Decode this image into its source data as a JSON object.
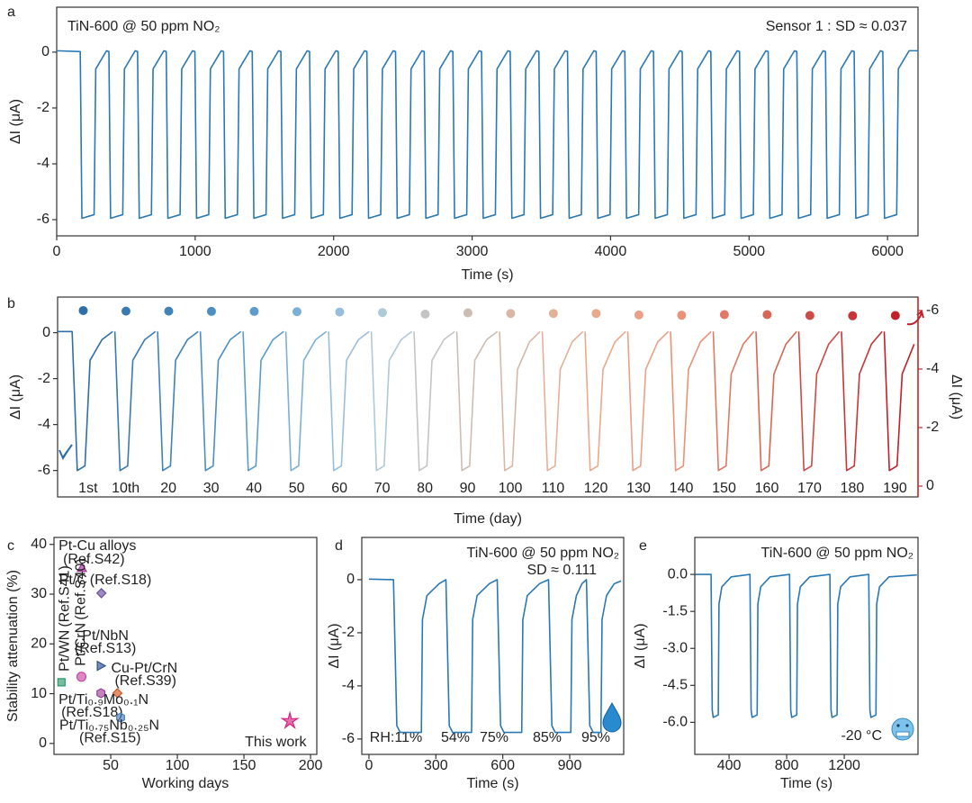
{
  "chart_data": [
    {
      "type": "line",
      "panel_label": "a",
      "title": "TiN-600 @ 50 ppm NO₂",
      "annotation": "Sensor 1 : SD ≈ 0.037",
      "xlabel": "Time (s)",
      "ylabel": "ΔI (μA)",
      "color": "#2a78b4",
      "xlim": [
        0,
        6220
      ],
      "ylim": [
        -6.58,
        1.61
      ],
      "xticks": [
        0,
        1000,
        2000,
        3000,
        4000,
        5000,
        6000
      ],
      "yticks": [
        0,
        -2,
        -4,
        -6
      ],
      "x": [
        0,
        170,
        182,
        270,
        282,
        360,
        377,
        389,
        477,
        489,
        567,
        584,
        596,
        684,
        696,
        774,
        791,
        803,
        891,
        903,
        981,
        998,
        1010,
        1098,
        1110,
        1188,
        1205,
        1217,
        1305,
        1317,
        1395,
        1412,
        1424,
        1512,
        1524,
        1602,
        1619,
        1631,
        1719,
        1731,
        1809,
        1826,
        1838,
        1926,
        1938,
        2016,
        2033,
        2045,
        2133,
        2145,
        2223,
        2240,
        2252,
        2340,
        2352,
        2430,
        2447,
        2459,
        2547,
        2559,
        2637,
        2654,
        2666,
        2754,
        2766,
        2844,
        2861,
        2873,
        2961,
        2973,
        3051,
        3068,
        3080,
        3168,
        3180,
        3258,
        3275,
        3287,
        3375,
        3387,
        3465,
        3482,
        3494,
        3582,
        3594,
        3672,
        3689,
        3701,
        3789,
        3801,
        3879,
        3896,
        3908,
        3996,
        4008,
        4086,
        4103,
        4115,
        4203,
        4215,
        4293,
        4310,
        4322,
        4410,
        4422,
        4500,
        4517,
        4529,
        4617,
        4629,
        4707,
        4724,
        4736,
        4824,
        4836,
        4914,
        4931,
        4943,
        5031,
        5043,
        5121,
        5138,
        5150,
        5238,
        5250,
        5328,
        5345,
        5357,
        5445,
        5457,
        5535,
        5552,
        5564,
        5652,
        5664,
        5742,
        5759,
        5771,
        5859,
        5871,
        5949,
        5966,
        5978,
        6066,
        6078,
        6156,
        6220
      ],
      "values": [
        0.05,
        0.02,
        -5.95,
        -5.82,
        -0.6,
        0.05,
        0.02,
        -5.95,
        -5.82,
        -0.6,
        0.05,
        0.02,
        -5.95,
        -5.82,
        -0.6,
        0.05,
        0.02,
        -5.95,
        -5.82,
        -0.6,
        0.05,
        0.02,
        -5.95,
        -5.82,
        -0.6,
        0.05,
        0.02,
        -5.95,
        -5.82,
        -0.6,
        0.05,
        0.02,
        -5.95,
        -5.82,
        -0.6,
        0.05,
        0.02,
        -5.95,
        -5.82,
        -0.6,
        0.05,
        0.02,
        -5.95,
        -5.82,
        -0.6,
        0.05,
        0.02,
        -5.95,
        -5.82,
        -0.6,
        0.05,
        0.02,
        -5.95,
        -5.82,
        -0.6,
        0.05,
        0.02,
        -5.95,
        -5.82,
        -0.6,
        0.05,
        0.02,
        -5.95,
        -5.82,
        -0.6,
        0.05,
        0.02,
        -5.95,
        -5.82,
        -0.6,
        0.05,
        0.02,
        -5.95,
        -5.82,
        -0.6,
        0.05,
        0.02,
        -5.95,
        -5.82,
        -0.6,
        0.05,
        0.02,
        -5.95,
        -5.82,
        -0.6,
        0.05,
        0.02,
        -5.95,
        -5.82,
        -0.6,
        0.05,
        0.02,
        -5.95,
        -5.82,
        -0.6,
        0.05,
        0.02,
        -5.95,
        -5.82,
        -0.6,
        0.05,
        0.02,
        -5.95,
        -5.82,
        -0.6,
        0.05,
        0.02,
        -5.95,
        -5.82,
        -0.6,
        0.05,
        0.02,
        -5.95,
        -5.82,
        -0.6,
        0.05,
        0.02,
        -5.95,
        -5.82,
        -0.6,
        0.05,
        0.02,
        -5.95,
        -5.82,
        -0.6,
        0.05,
        0.02,
        -5.95,
        -5.82,
        -0.6,
        0.05,
        0.02,
        -5.95,
        -5.82,
        -0.6,
        0.05,
        0.02,
        -5.95,
        -5.82,
        -0.6,
        0.05,
        0.02,
        -5.95,
        -5.82,
        -0.6,
        0.05,
        0.05
      ]
    },
    {
      "type": "line",
      "panel_label": "b",
      "xlabel": "Time (day)",
      "ylabel": "ΔI (μA)",
      "y2label": "ΔI (μA)",
      "y2color": "#c62828",
      "xlim": [
        0,
        20.13
      ],
      "ylim": [
        -7.15,
        1.55
      ],
      "yticks": [
        0,
        -2,
        -4,
        -6
      ],
      "y2lim": [
        0.37,
        -6.46
      ],
      "y2ticks": [
        0,
        -2,
        -4,
        -6
      ],
      "series": [
        {
          "name": "1st",
          "color": "#2f6fa7",
          "x": [
            0,
            0.34,
            0.46,
            0.64,
            0.76,
            1.04,
            1.29
          ],
          "values": [
            0.05,
            0.05,
            -6.0,
            -5.8,
            -1.2,
            -0.3,
            0.05
          ]
        },
        {
          "name": "10th",
          "color": "#3a7ab2",
          "x": [
            1.34,
            1.46,
            1.64,
            1.76,
            2.04,
            2.29
          ],
          "values": [
            0.05,
            -6.0,
            -5.8,
            -1.2,
            -0.3,
            0.05
          ]
        },
        {
          "name": "20",
          "color": "#3f83b9",
          "x": [
            2.34,
            2.46,
            2.64,
            2.76,
            3.04,
            3.29
          ],
          "values": [
            0.05,
            -6.0,
            -5.8,
            -1.2,
            -0.3,
            0.05
          ]
        },
        {
          "name": "30",
          "color": "#4b8fc2",
          "x": [
            3.34,
            3.46,
            3.64,
            3.76,
            4.04,
            4.29
          ],
          "values": [
            0.05,
            -6.0,
            -5.8,
            -1.2,
            -0.3,
            0.05
          ]
        },
        {
          "name": "40",
          "color": "#5b9ccb",
          "x": [
            4.34,
            4.46,
            4.64,
            4.76,
            5.04,
            5.29
          ],
          "values": [
            0.05,
            -6.0,
            -5.8,
            -1.2,
            -0.3,
            0.05
          ]
        },
        {
          "name": "50",
          "color": "#7cb0d6",
          "x": [
            5.34,
            5.46,
            5.64,
            5.76,
            6.04,
            6.29
          ],
          "values": [
            0.05,
            -6.0,
            -5.8,
            -1.2,
            -0.3,
            0.05
          ]
        },
        {
          "name": "60",
          "color": "#99bedb",
          "x": [
            6.34,
            6.46,
            6.64,
            6.76,
            7.04,
            7.29
          ],
          "values": [
            0.05,
            -6.0,
            -5.8,
            -1.2,
            -0.3,
            0.05
          ]
        },
        {
          "name": "70",
          "color": "#aecad9",
          "x": [
            7.34,
            7.46,
            7.64,
            7.76,
            8.04,
            8.29
          ],
          "values": [
            0.05,
            -6.0,
            -5.8,
            -1.2,
            -0.3,
            0.05
          ]
        },
        {
          "name": "80",
          "color": "#c4c4c4",
          "x": [
            8.34,
            8.46,
            8.64,
            8.76,
            9.04,
            9.29
          ],
          "values": [
            0.05,
            -6.0,
            -5.8,
            -1.2,
            -0.3,
            0.05
          ]
        },
        {
          "name": "90",
          "color": "#cdbcb3",
          "x": [
            9.34,
            9.46,
            9.64,
            9.76,
            10.04,
            10.29
          ],
          "values": [
            0.05,
            -6.0,
            -5.8,
            -1.2,
            -0.3,
            0.05
          ]
        },
        {
          "name": "100",
          "color": "#d8b7a7",
          "x": [
            10.34,
            10.46,
            10.64,
            10.76,
            11.04,
            11.29
          ],
          "values": [
            0.05,
            -6.0,
            -5.8,
            -1.6,
            -0.4,
            0.05
          ]
        },
        {
          "name": "110",
          "color": "#e2b198",
          "x": [
            11.34,
            11.46,
            11.64,
            11.76,
            12.04,
            12.29
          ],
          "values": [
            0.05,
            -6.0,
            -5.8,
            -1.6,
            -0.4,
            0.05
          ]
        },
        {
          "name": "120",
          "color": "#e8a98c",
          "x": [
            12.34,
            12.46,
            12.64,
            12.76,
            13.04,
            13.29
          ],
          "values": [
            0.05,
            -6.0,
            -5.8,
            -1.6,
            -0.4,
            0.05
          ]
        },
        {
          "name": "130",
          "color": "#eba089",
          "x": [
            13.34,
            13.46,
            13.64,
            13.76,
            14.04,
            14.29
          ],
          "values": [
            0.05,
            -6.0,
            -5.8,
            -1.6,
            -0.4,
            0.05
          ]
        },
        {
          "name": "140",
          "color": "#e9927a",
          "x": [
            14.34,
            14.46,
            14.64,
            14.76,
            15.04,
            15.29
          ],
          "values": [
            0.05,
            -6.0,
            -5.8,
            -1.6,
            -0.4,
            0.05
          ]
        },
        {
          "name": "150",
          "color": "#e07a66",
          "x": [
            15.34,
            15.46,
            15.64,
            15.76,
            16.04,
            16.29
          ],
          "values": [
            0.05,
            -6.0,
            -5.8,
            -1.8,
            -0.5,
            0.05
          ]
        },
        {
          "name": "160",
          "color": "#d86757",
          "x": [
            16.34,
            16.46,
            16.64,
            16.76,
            17.04,
            17.29
          ],
          "values": [
            0.05,
            -6.0,
            -5.8,
            -1.8,
            -0.5,
            0.05
          ]
        },
        {
          "name": "170",
          "color": "#ce4a46",
          "x": [
            17.34,
            17.46,
            17.64,
            17.76,
            18.04,
            18.29
          ],
          "values": [
            0.05,
            -6.0,
            -5.8,
            -1.8,
            -0.5,
            0.05
          ]
        },
        {
          "name": "180",
          "color": "#c73538",
          "x": [
            18.34,
            18.46,
            18.64,
            18.76,
            19.04,
            19.29
          ],
          "values": [
            0.05,
            -6.0,
            -5.8,
            -1.8,
            -0.5,
            0.05
          ]
        },
        {
          "name": "190",
          "color": "#c0202a",
          "x": [
            19.34,
            19.46,
            19.64,
            19.76,
            20.04
          ],
          "values": [
            0.05,
            -6.0,
            -5.8,
            -1.8,
            -0.5
          ]
        },
        {
          "axis": "y2",
          "style": "markers",
          "x": [
            0.6,
            1.6,
            2.6,
            3.6,
            4.6,
            5.6,
            6.6,
            7.6,
            8.6,
            9.6,
            10.6,
            11.6,
            12.6,
            13.6,
            14.6,
            15.6,
            16.6,
            17.6,
            18.6,
            19.6
          ],
          "values": [
            -6.0,
            -5.98,
            -5.98,
            -5.97,
            -5.97,
            -5.96,
            -5.95,
            -5.93,
            -5.88,
            -5.92,
            -5.9,
            -5.9,
            -5.9,
            -5.85,
            -5.84,
            -5.86,
            -5.86,
            -5.83,
            -5.82,
            -5.83
          ]
        }
      ]
    },
    {
      "type": "scatter",
      "panel_label": "c",
      "xlabel": "Working days",
      "ylabel": "Stability attenuation (%)",
      "xlim": [
        7.4,
        204.7
      ],
      "ylim": [
        -2.2,
        41.4
      ],
      "xticks": [
        50,
        100,
        150,
        200
      ],
      "yticks": [
        0,
        10,
        20,
        30,
        40
      ],
      "series": [
        {
          "name": "Pt-Cu alloys",
          "ref": "(Ref.S42)",
          "color": "#a8339a",
          "marker": "triangle",
          "x": [
            28.4
          ],
          "values": [
            35.3
          ]
        },
        {
          "name": "Pt/C",
          "ref": "(Ref.S18)",
          "color": "#6a4fa0",
          "marker": "diamond",
          "x": [
            43
          ],
          "values": [
            30.2
          ]
        },
        {
          "name": "Pt/WN",
          "ref": "(Ref.S41)",
          "color": "#2e9a6a",
          "marker": "square",
          "x": [
            13
          ],
          "values": [
            12.3
          ]
        },
        {
          "name": "Pt/CrN",
          "ref": "(Ref.S40)",
          "color": "#c84aa6",
          "marker": "circle",
          "x": [
            28
          ],
          "values": [
            13.4
          ]
        },
        {
          "name": "Pt/NbN",
          "ref": "(Ref.S13)",
          "color": "#2a4f8a",
          "marker": "triangle-right",
          "x": [
            42.6
          ],
          "values": [
            15.6
          ]
        },
        {
          "name": "Cu-Pt/CrN",
          "ref": "(Ref.S39)",
          "color": "#d2561e",
          "marker": "diamond",
          "x": [
            55
          ],
          "values": [
            10.1
          ]
        },
        {
          "name": "Pt/Ti₀.₉Mo₀.₁N",
          "ref": "(Ref.S18)",
          "color": "#a0409a",
          "marker": "hexagon",
          "x": [
            42.6
          ],
          "values": [
            10.1
          ]
        },
        {
          "name": "Pt/Ti₀.₇₅Nb₀.₂₅N",
          "ref": "(Ref.S15)",
          "color": "#4a7fc0",
          "marker": "hexagon",
          "x": [
            57.4
          ],
          "values": [
            5.2
          ]
        },
        {
          "name": "This work",
          "color": "#d6247e",
          "marker": "star",
          "x": [
            184.5
          ],
          "values": [
            4.5
          ]
        }
      ]
    },
    {
      "type": "line",
      "panel_label": "d",
      "title": "TiN-600 @ 50 ppm NO₂",
      "annotation": "SD ≈ 0.111",
      "annotation_color": "#c62828",
      "pulse_labels": [
        "RH:11%",
        "54%",
        "75%",
        "85%",
        "95%"
      ],
      "xlabel": "Time (s)",
      "ylabel": "ΔI (μA)",
      "color": "#2a78b4",
      "xlim": [
        -32,
        1142
      ],
      "ylim": [
        -6.58,
        1.59
      ],
      "xticks": [
        0,
        300,
        600,
        900
      ],
      "yticks": [
        0,
        -2,
        -4,
        -6
      ],
      "x": [
        0,
        110,
        125,
        140,
        235,
        240,
        260,
        315,
        345,
        360,
        375,
        460,
        465,
        485,
        540,
        575,
        590,
        605,
        685,
        690,
        710,
        765,
        805,
        820,
        835,
        905,
        910,
        930,
        955,
        975,
        990,
        1005,
        1040,
        1045,
        1065,
        1100,
        1130
      ],
      "values": [
        0.02,
        0,
        -5.5,
        -5.75,
        -5.75,
        -1.5,
        -0.6,
        -0.15,
        0,
        -5.5,
        -5.75,
        -5.75,
        -1.5,
        -0.6,
        -0.15,
        0,
        -5.5,
        -5.75,
        -5.75,
        -1.5,
        -0.6,
        -0.15,
        0,
        -5.5,
        -5.75,
        -5.75,
        -1.5,
        -0.6,
        -0.15,
        0,
        -5.5,
        -5.75,
        -5.75,
        -1.5,
        -0.6,
        -0.15,
        -0.05
      ]
    },
    {
      "type": "line",
      "panel_label": "e",
      "title": "TiN-600 @ 50 ppm NO₂",
      "annotation": "-20 °C",
      "xlabel": "Time (s)",
      "ylabel": "ΔI (μA)",
      "color": "#2a78b4",
      "xlim": [
        162,
        1712
      ],
      "ylim": [
        -7.3,
        1.5
      ],
      "xticks": [
        400,
        800,
        1200
      ],
      "yticks": [
        {
          "value": 0,
          "label": "0.0"
        },
        -1.5,
        {
          "value": -3,
          "label": "-3.0"
        },
        -4.5,
        {
          "value": -6,
          "label": "-6.0"
        }
      ],
      "x": [
        165,
        275,
        283,
        290,
        325,
        330,
        350,
        415,
        545,
        553,
        560,
        595,
        600,
        620,
        685,
        820,
        828,
        835,
        870,
        875,
        895,
        960,
        1100,
        1108,
        1115,
        1150,
        1155,
        1175,
        1240,
        1370,
        1378,
        1385,
        1420,
        1425,
        1445,
        1510,
        1705
      ],
      "values": [
        0,
        0,
        -5.5,
        -5.8,
        -5.7,
        -1.2,
        -0.5,
        -0.1,
        0,
        -5.5,
        -5.8,
        -5.7,
        -1.2,
        -0.5,
        -0.1,
        0,
        -5.5,
        -5.8,
        -5.7,
        -1.2,
        -0.5,
        -0.1,
        0,
        -5.5,
        -5.8,
        -5.7,
        -1.2,
        -0.5,
        -0.1,
        0,
        -5.5,
        -5.8,
        -5.7,
        -1.2,
        -0.5,
        -0.1,
        -0.02
      ]
    }
  ]
}
